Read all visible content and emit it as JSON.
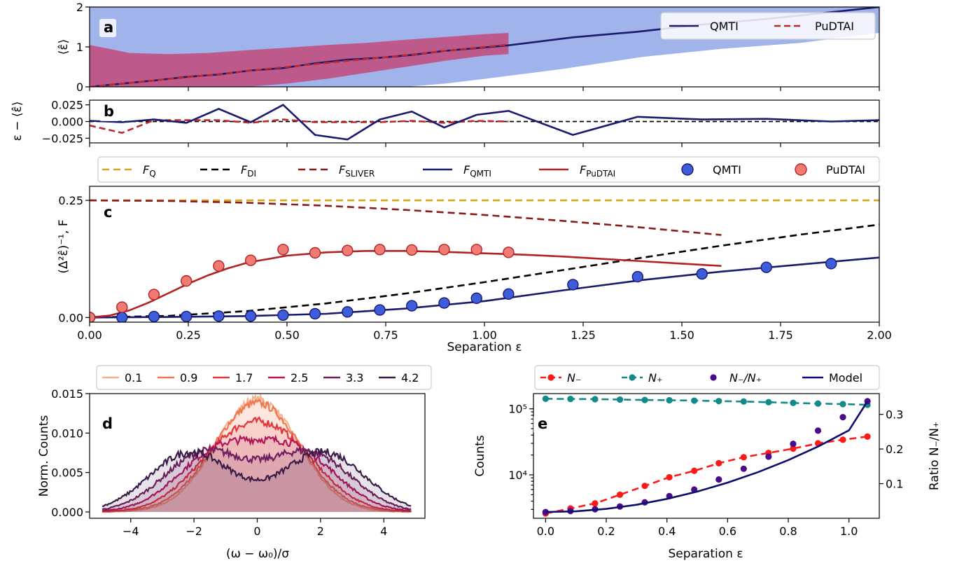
{
  "chart_data": [
    {
      "panel": "a",
      "type": "line",
      "xlim": [
        0,
        2
      ],
      "ylim": [
        0,
        2
      ],
      "yticks": [
        "0",
        "1",
        "2"
      ],
      "ylabel": "⟨ε̂⟩",
      "legend": {
        "placement": "top-right",
        "entries": [
          "QMTI",
          "PuDTAI"
        ]
      },
      "series": [
        {
          "name": "QMTI",
          "style": "solid",
          "color": "#1a1a6e",
          "x": [
            0,
            0.082,
            0.163,
            0.245,
            0.327,
            0.408,
            0.49,
            0.571,
            0.653,
            0.735,
            0.816,
            0.898,
            0.98,
            1.061,
            1.224,
            1.388,
            1.551,
            1.714,
            1.878,
            2.0
          ],
          "y": [
            0,
            0.08,
            0.16,
            0.25,
            0.31,
            0.41,
            0.47,
            0.59,
            0.68,
            0.73,
            0.8,
            0.9,
            0.97,
            1.04,
            1.24,
            1.38,
            1.56,
            1.7,
            1.87,
            2.0
          ]
        },
        {
          "name": "PuDTAI",
          "style": "dashed",
          "color": "#c0292b",
          "x": [
            0,
            0.082,
            0.163,
            0.245,
            0.327,
            0.408,
            0.49,
            0.571,
            0.653,
            0.735,
            0.816,
            0.898,
            0.98,
            1.061
          ],
          "y": [
            0,
            0.08,
            0.16,
            0.24,
            0.32,
            0.41,
            0.49,
            0.57,
            0.65,
            0.73,
            0.81,
            0.9,
            0.98,
            1.06
          ]
        }
      ],
      "bands": [
        {
          "series": "QMTI",
          "color": "#8fa6e8",
          "x": [
            0,
            0.1,
            0.2,
            0.3,
            0.4,
            0.5,
            0.6,
            0.7,
            0.8,
            0.9,
            1.0,
            1.2,
            1.4,
            1.6,
            1.8,
            2.0
          ],
          "lower": [
            0,
            0,
            0,
            0,
            0,
            0,
            0,
            0,
            0,
            0.08,
            0.2,
            0.45,
            0.75,
            0.95,
            1.1,
            1.35
          ],
          "upper": [
            2,
            2,
            2,
            2,
            2,
            2,
            2,
            2,
            2,
            2,
            2,
            2,
            2,
            2,
            2,
            2
          ]
        },
        {
          "series": "PuDTAI",
          "color": "#c24a7a",
          "x": [
            0,
            0.05,
            0.1,
            0.2,
            0.3,
            0.4,
            0.5,
            0.6,
            0.7,
            0.8,
            0.9,
            1.0,
            1.061
          ],
          "lower": [
            0,
            0,
            0,
            0,
            0,
            0,
            0.08,
            0.2,
            0.35,
            0.5,
            0.65,
            0.78,
            0.82
          ],
          "upper": [
            1.05,
            0.95,
            0.85,
            0.82,
            0.85,
            0.92,
            0.98,
            1.05,
            1.1,
            1.18,
            1.25,
            1.32,
            1.35
          ]
        }
      ]
    },
    {
      "panel": "b",
      "type": "line",
      "xlim": [
        0,
        2
      ],
      "ylim": [
        -0.032,
        0.032
      ],
      "yticks": [
        "0.025",
        "0.000",
        "−0.025"
      ],
      "ylabel": "ε − ⟨ε̂⟩",
      "series": [
        {
          "name": "QMTI",
          "style": "solid",
          "color": "#1a1a6e",
          "x": [
            0,
            0.082,
            0.163,
            0.245,
            0.327,
            0.408,
            0.49,
            0.571,
            0.653,
            0.735,
            0.816,
            0.898,
            0.98,
            1.061,
            1.224,
            1.388,
            1.551,
            1.714,
            1.878,
            2.0
          ],
          "y": [
            0.001,
            -0.001,
            0.003,
            -0.002,
            0.019,
            -0.001,
            0.025,
            -0.02,
            -0.027,
            0.003,
            0.015,
            -0.009,
            0.01,
            0.016,
            -0.02,
            0.007,
            0.003,
            0.004,
            0.0,
            0.002
          ]
        },
        {
          "name": "PuDTAI",
          "style": "dashed",
          "color": "#c0292b",
          "x": [
            0,
            0.082,
            0.163,
            0.245,
            0.327,
            0.408,
            0.49,
            0.571,
            0.653,
            0.735,
            0.816,
            0.898,
            0.98,
            1.061
          ],
          "y": [
            -0.006,
            -0.017,
            0.002,
            0.002,
            0.002,
            -0.002,
            0.003,
            -0.001,
            -0.001,
            -0.001,
            0.001,
            -0.002,
            0.001,
            0.0
          ]
        },
        {
          "name": "",
          "style": "dashed",
          "color": "#000000",
          "x": [
            0,
            2
          ],
          "y": [
            0,
            0
          ]
        }
      ]
    },
    {
      "panel": "c",
      "type": "line",
      "xlim": [
        0,
        2
      ],
      "ylim": [
        -0.01,
        0.28
      ],
      "xticks": [
        "0.00",
        "0.25",
        "0.50",
        "0.75",
        "1.00",
        "1.25",
        "1.50",
        "1.75",
        "2.00"
      ],
      "yticks": [
        "0.00",
        "0.25"
      ],
      "xlabel": "Separation ε",
      "ylabel": "(Δ²ε̂)⁻¹, F",
      "legend": {
        "placement": "top",
        "entries": [
          "F_Q",
          "F_DI",
          "F_SLIVER",
          "F_QMTI",
          "F_PuDTAI",
          "QMTI",
          "PuDTAI"
        ]
      },
      "series": [
        {
          "name": "F_Q",
          "style": "dashed",
          "color": "#daa520",
          "x": [
            0,
            2
          ],
          "y": [
            0.25,
            0.25
          ]
        },
        {
          "name": "F_DI",
          "style": "dashed",
          "color": "#000000",
          "x": [
            0,
            0.2,
            0.4,
            0.6,
            0.8,
            1.0,
            1.2,
            1.4,
            1.6,
            1.8,
            2.0
          ],
          "y": [
            0,
            0.0035,
            0.0137,
            0.0301,
            0.0511,
            0.0754,
            0.1014,
            0.1277,
            0.1532,
            0.1769,
            0.1983
          ]
        },
        {
          "name": "F_SLIVER",
          "style": "dashed",
          "color": "#8b1a1a",
          "x": [
            0,
            0.2,
            0.4,
            0.6,
            0.8,
            1.0,
            1.2,
            1.4,
            1.6
          ],
          "y": [
            0.25,
            0.2487,
            0.2448,
            0.2384,
            0.2296,
            0.2188,
            0.2061,
            0.1919,
            0.176
          ]
        },
        {
          "name": "F_QMTI",
          "style": "solid",
          "color": "#1a1a6e",
          "x": [
            0,
            0.2,
            0.4,
            0.6,
            0.8,
            1.0,
            1.2,
            1.4,
            1.6,
            1.8,
            2.0
          ],
          "y": [
            0,
            0.001,
            0.003,
            0.008,
            0.019,
            0.035,
            0.058,
            0.08,
            0.098,
            0.113,
            0.128
          ]
        },
        {
          "name": "F_PuDTAI",
          "style": "solid",
          "color": "#b22222",
          "x": [
            0,
            0.05,
            0.1,
            0.15,
            0.2,
            0.25,
            0.3,
            0.35,
            0.4,
            0.5,
            0.6,
            0.7,
            0.8,
            0.9,
            1.0,
            1.1,
            1.2,
            1.3,
            1.4,
            1.5,
            1.6
          ],
          "y": [
            0,
            0.004,
            0.015,
            0.032,
            0.052,
            0.072,
            0.09,
            0.105,
            0.117,
            0.132,
            0.139,
            0.142,
            0.142,
            0.14,
            0.137,
            0.134,
            0.13,
            0.125,
            0.12,
            0.115,
            0.11
          ]
        }
      ],
      "points": [
        {
          "name": "QMTI",
          "fill": "#3d5ddb",
          "stroke": "#1a1a6e",
          "x": [
            0,
            0.082,
            0.163,
            0.245,
            0.327,
            0.408,
            0.49,
            0.571,
            0.653,
            0.735,
            0.816,
            0.898,
            0.98,
            1.061,
            1.224,
            1.388,
            1.551,
            1.714,
            1.878
          ],
          "y": [
            0.0,
            0.0,
            0.002,
            0.002,
            0.003,
            0.003,
            0.005,
            0.008,
            0.012,
            0.016,
            0.025,
            0.031,
            0.041,
            0.05,
            0.07,
            0.087,
            0.093,
            0.107,
            0.115
          ]
        },
        {
          "name": "PuDTAI",
          "fill": "#f07b75",
          "stroke": "#b22222",
          "x": [
            0,
            0.082,
            0.163,
            0.245,
            0.327,
            0.408,
            0.49,
            0.571,
            0.653,
            0.735,
            0.816,
            0.898,
            0.98,
            1.061
          ],
          "y": [
            0.0,
            0.022,
            0.049,
            0.078,
            0.11,
            0.122,
            0.145,
            0.138,
            0.143,
            0.145,
            0.144,
            0.145,
            0.145,
            0.139
          ]
        }
      ]
    },
    {
      "panel": "d",
      "type": "area",
      "xlim": [
        -5.3,
        5.3
      ],
      "ylim": [
        -0.0008,
        0.015
      ],
      "xticks": [
        "−4",
        "−2",
        "0",
        "2",
        "4"
      ],
      "yticks": [
        "0.000",
        "0.005",
        "0.010",
        "0.015"
      ],
      "xlabel": "(ω − ω₀)/σ",
      "ylabel": "Norm. Counts",
      "legend": {
        "placement": "top",
        "entries": [
          "0.1",
          "0.9",
          "1.7",
          "2.5",
          "3.3",
          "4.2"
        ]
      },
      "series": [
        {
          "name": "0.1",
          "separation": 0.1,
          "color": "#f4b18e"
        },
        {
          "name": "0.9",
          "separation": 0.9,
          "color": "#f07650"
        },
        {
          "name": "1.7",
          "separation": 1.7,
          "color": "#e2363e"
        },
        {
          "name": "2.5",
          "separation": 2.5,
          "color": "#b4165c"
        },
        {
          "name": "3.3",
          "separation": 3.3,
          "color": "#6e1f5c"
        },
        {
          "name": "4.2",
          "separation": 4.2,
          "color": "#3b1c48"
        }
      ]
    },
    {
      "panel": "e",
      "type": "line",
      "xlim": [
        -0.04,
        1.1
      ],
      "xticks": [
        "0.0",
        "0.2",
        "0.4",
        "0.6",
        "0.8",
        "1.0"
      ],
      "xlabel": "Separation ε",
      "ylabel": "Counts",
      "ylabel_right": "Ratio N₋/N₊",
      "yscale_left": "log",
      "ylim_left": [
        2200,
        170000
      ],
      "yticks_left": [
        "10⁴",
        "10⁵"
      ],
      "ylim_right": [
        0,
        0.36
      ],
      "yticks_right": [
        "0.1",
        "0.2",
        "0.3"
      ],
      "legend": {
        "placement": "top",
        "entries": [
          "N₋",
          "N₊",
          "N₋/N₊",
          "Model"
        ]
      },
      "series": [
        {
          "name": "N₋",
          "axis": "left",
          "style": "dashed",
          "color": "#ff1a1a",
          "x": [
            0,
            0.082,
            0.163,
            0.245,
            0.327,
            0.408,
            0.49,
            0.571,
            0.653,
            0.735,
            0.816,
            0.898,
            0.98,
            1.061
          ],
          "y": [
            2600,
            3100,
            3700,
            5000,
            6800,
            9200,
            11500,
            15000,
            18500,
            21500,
            25000,
            30000,
            34000,
            38000
          ]
        },
        {
          "name": "N₊",
          "axis": "left",
          "style": "dashed",
          "color": "#138a8a",
          "x": [
            0,
            0.082,
            0.163,
            0.245,
            0.327,
            0.408,
            0.49,
            0.571,
            0.653,
            0.735,
            0.816,
            0.898,
            0.98,
            1.061
          ],
          "y": [
            142000,
            141000,
            140000,
            138000,
            136000,
            135000,
            133000,
            131000,
            129000,
            126000,
            123000,
            120000,
            118000,
            115000
          ]
        },
        {
          "name": "N₋/N₊",
          "axis": "right",
          "style": "none",
          "color": "#4b0c8c",
          "x": [
            0,
            0.082,
            0.163,
            0.245,
            0.327,
            0.408,
            0.49,
            0.571,
            0.653,
            0.735,
            0.816,
            0.898,
            0.98,
            1.061
          ],
          "y": [
            0.018,
            0.021,
            0.026,
            0.034,
            0.046,
            0.064,
            0.083,
            0.112,
            0.143,
            0.178,
            0.215,
            0.253,
            0.292,
            0.338
          ]
        },
        {
          "name": "Model",
          "axis": "right",
          "style": "solid",
          "color": "#0d0d70",
          "x": [
            0,
            0.1,
            0.2,
            0.3,
            0.4,
            0.5,
            0.6,
            0.7,
            0.8,
            0.9,
            1.0,
            1.061
          ],
          "y": [
            0.018,
            0.02,
            0.027,
            0.039,
            0.056,
            0.077,
            0.103,
            0.133,
            0.168,
            0.208,
            0.254,
            0.338
          ]
        }
      ]
    }
  ]
}
